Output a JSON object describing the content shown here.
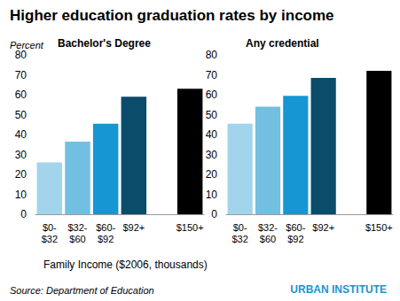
{
  "title": "Higher education graduation rates by income",
  "x_label": "Family Income ($2006, thousands)",
  "source": "Source: Department of Education",
  "credit": "URBAN INSTITUTE",
  "chart_data": [
    {
      "type": "bar",
      "subtitle": "Bachelor's Degree",
      "y_label": "Percent",
      "categories": [
        "$0-\n$32",
        "$32-\n$60",
        "$60-\n$92",
        "$92+",
        null,
        "$150+"
      ],
      "values": [
        26,
        36.5,
        45.5,
        59,
        null,
        63
      ],
      "colors": [
        "#a2d4ec",
        "#73bfe2",
        "#1696d2",
        "#0a4c6a",
        null,
        "#000000"
      ],
      "ylim": [
        0,
        80
      ],
      "yticks": [
        0,
        10,
        20,
        30,
        40,
        50,
        60,
        70,
        80
      ],
      "grid": false
    },
    {
      "type": "bar",
      "subtitle": "Any credential",
      "categories": [
        "$0-\n$32",
        "$32-\n$60",
        "$60-\n$92",
        "$92+",
        null,
        "$150+"
      ],
      "values": [
        45.5,
        54,
        59.5,
        68.5,
        null,
        72
      ],
      "colors": [
        "#a2d4ec",
        "#73bfe2",
        "#1696d2",
        "#0a4c6a",
        null,
        "#000000"
      ],
      "ylim": [
        0,
        80
      ],
      "yticks": [
        0,
        10,
        20,
        30,
        40,
        50,
        60,
        70,
        80
      ],
      "grid": false
    }
  ]
}
